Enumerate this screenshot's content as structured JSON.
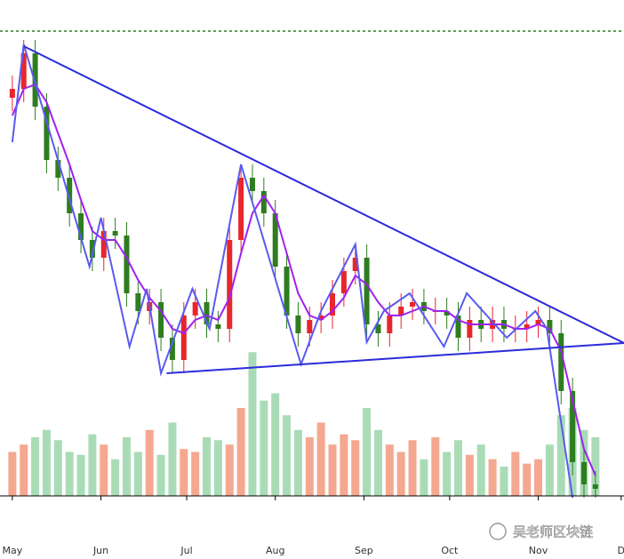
{
  "chart_data": {
    "type": "candlestick",
    "x": [
      0,
      4,
      8,
      12,
      16,
      20,
      24,
      28,
      32,
      36,
      40,
      44,
      48,
      52,
      56,
      60,
      64,
      68,
      72,
      76,
      80,
      84,
      88,
      92,
      96,
      100,
      104,
      108,
      112,
      116,
      120,
      124,
      128,
      132,
      136,
      140,
      144,
      148,
      152,
      156,
      160,
      164,
      168,
      172,
      176,
      180,
      184,
      188,
      192,
      196,
      200,
      204
    ],
    "open": [
      90,
      92,
      100,
      88,
      76,
      72,
      64,
      58,
      54,
      60,
      59,
      46,
      42,
      44,
      36,
      31,
      41,
      44,
      39,
      38,
      58,
      72,
      69,
      64,
      52,
      41,
      37,
      40,
      41,
      46,
      51,
      54,
      39,
      37,
      41,
      43,
      44,
      42,
      42,
      41,
      36,
      40,
      38,
      40,
      38,
      38,
      39,
      40,
      37,
      24,
      8,
      3
    ],
    "high": [
      95,
      103,
      103,
      91,
      79,
      75,
      67,
      61,
      63,
      63,
      62,
      49,
      47,
      47,
      39,
      44,
      47,
      47,
      42,
      61,
      75,
      75,
      72,
      67,
      55,
      44,
      43,
      44,
      49,
      54,
      57,
      57,
      42,
      44,
      46,
      47,
      47,
      45,
      45,
      44,
      43,
      43,
      43,
      43,
      41,
      42,
      43,
      43,
      40,
      27,
      11,
      6
    ],
    "low": [
      87,
      89,
      85,
      73,
      69,
      61,
      55,
      51,
      51,
      56,
      43,
      39,
      39,
      33,
      28,
      28,
      38,
      36,
      35,
      35,
      55,
      66,
      61,
      49,
      38,
      34,
      34,
      37,
      38,
      43,
      48,
      36,
      34,
      34,
      38,
      40,
      39,
      39,
      38,
      33,
      33,
      35,
      35,
      35,
      35,
      35,
      36,
      34,
      21,
      5,
      0,
      0
    ],
    "close": [
      92,
      100,
      88,
      76,
      72,
      64,
      58,
      54,
      60,
      59,
      46,
      42,
      44,
      36,
      31,
      41,
      44,
      39,
      38,
      58,
      72,
      69,
      64,
      52,
      41,
      37,
      40,
      41,
      46,
      51,
      54,
      39,
      37,
      41,
      43,
      44,
      42,
      42,
      41,
      36,
      40,
      38,
      40,
      38,
      38,
      39,
      40,
      37,
      24,
      8,
      3,
      2
    ],
    "up_color": "#e8262b",
    "down_color": "#2e7d1f",
    "xlim": [
      -4,
      214
    ],
    "ylim": [
      0,
      112
    ],
    "xticks": [
      {
        "value": 0,
        "label": "May"
      },
      {
        "value": 31,
        "label": "Jun"
      },
      {
        "value": 61,
        "label": "Jul"
      },
      {
        "value": 92,
        "label": "Aug"
      },
      {
        "value": 123,
        "label": "Sep"
      },
      {
        "value": 153,
        "label": "Oct"
      },
      {
        "value": 184,
        "label": "Nov"
      },
      {
        "value": 213,
        "label": "D"
      }
    ],
    "volume": {
      "values": [
        30,
        35,
        40,
        45,
        38,
        30,
        28,
        42,
        35,
        25,
        40,
        30,
        45,
        28,
        50,
        32,
        30,
        40,
        38,
        35,
        60,
        98,
        65,
        70,
        55,
        45,
        40,
        50,
        35,
        42,
        38,
        60,
        45,
        35,
        30,
        38,
        25,
        40,
        30,
        38,
        28,
        35,
        25,
        20,
        30,
        22,
        25,
        35,
        55,
        60,
        45,
        40
      ],
      "ylim": [
        0,
        100
      ],
      "up_color": "#f4a88f",
      "down_color": "#a9dcb6"
    },
    "ma": {
      "color": "#a020f0",
      "values": [
        86,
        92,
        93,
        89,
        82,
        75,
        67,
        60,
        58,
        58,
        54,
        49,
        45,
        42,
        38,
        37,
        40,
        41,
        40,
        45,
        55,
        64,
        68,
        64,
        55,
        46,
        41,
        40,
        42,
        45,
        50,
        48,
        44,
        41,
        41,
        42,
        43,
        42,
        42,
        40,
        39,
        39,
        39,
        39,
        38,
        38,
        39,
        38,
        33,
        22,
        11,
        5
      ]
    },
    "zigzag": {
      "color": "#5a5af0",
      "x": [
        0,
        4,
        27,
        31,
        41,
        47,
        52,
        63,
        69,
        80,
        101,
        108,
        120,
        124,
        130,
        139,
        151,
        159,
        173,
        183,
        187,
        196
      ],
      "values": [
        80,
        102,
        52,
        63,
        34,
        47,
        28,
        47,
        38,
        75,
        30,
        42,
        57,
        35,
        42,
        46,
        34,
        46,
        36,
        42,
        38,
        0
      ]
    },
    "trendlines": [
      {
        "color": "#2b2bdc",
        "x": [
          4,
          214
        ],
        "values": [
          101.6,
          34.8
        ]
      },
      {
        "color": "#2b2bdc",
        "x": [
          54,
          214
        ],
        "values": [
          28,
          34.8
        ]
      }
    ],
    "reference_line": {
      "value": 105,
      "color": "#2e7d1f"
    },
    "watermark": "吴老师区块链"
  }
}
